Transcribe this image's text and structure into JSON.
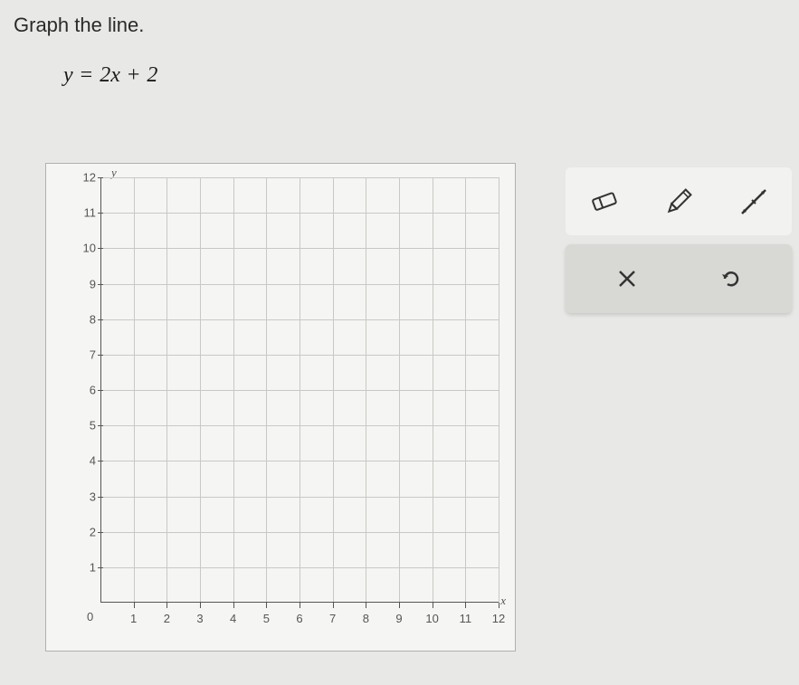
{
  "instruction": "Graph the line.",
  "equation": {
    "lhs_var": "y",
    "eq": "=",
    "coef": "2",
    "rhs_var": "x",
    "plus": "+",
    "const": "2"
  },
  "graph": {
    "type": "cartesian-grid",
    "x_axis": {
      "name": "x",
      "min": 0,
      "max": 12,
      "ticks": [
        1,
        2,
        3,
        4,
        5,
        6,
        7,
        8,
        9,
        10,
        11,
        12
      ]
    },
    "y_axis": {
      "name": "y",
      "min": 0,
      "max": 12,
      "ticks": [
        1,
        2,
        3,
        4,
        5,
        6,
        7,
        8,
        9,
        10,
        11,
        12
      ]
    },
    "origin_label": "0",
    "grid_color": "#c8c8c5",
    "background_color": "#f5f5f3",
    "border_color": "#b0b0b0"
  },
  "tools": {
    "eraser": "eraser-icon",
    "pencil": "pencil-icon",
    "line": "line-icon"
  },
  "buttons": {
    "close": "×",
    "undo": "↺"
  }
}
